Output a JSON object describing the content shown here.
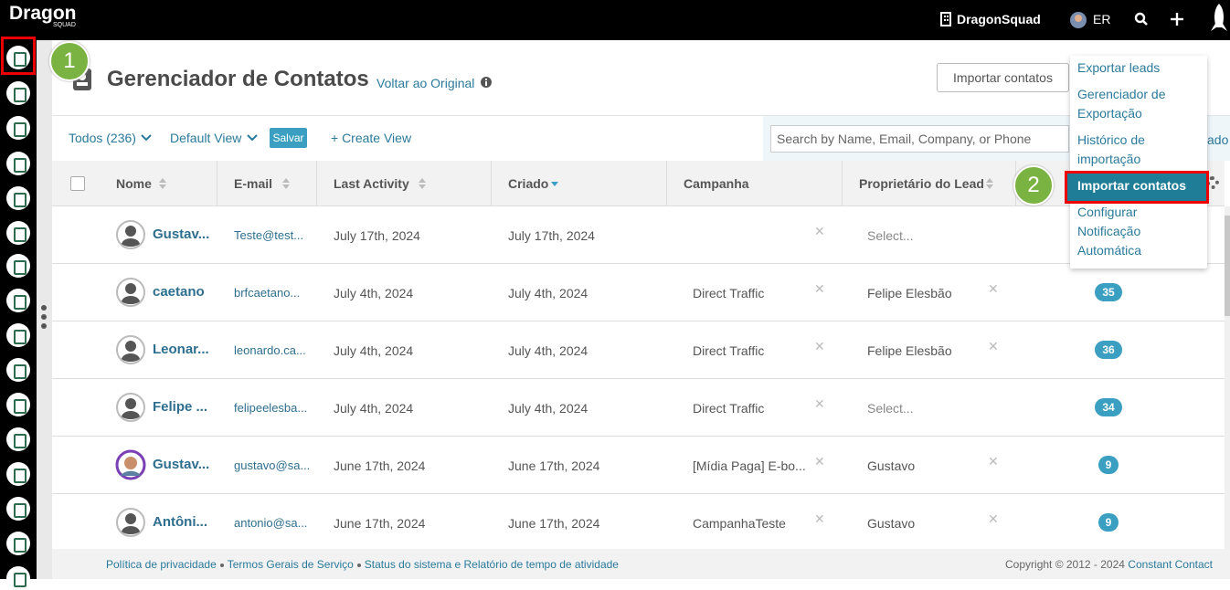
{
  "topbar": {
    "logo": "Dragon",
    "logo_sub": "SQUAD",
    "account": "DragonSquad",
    "user": "ER"
  },
  "steps": [
    "1",
    "2"
  ],
  "header": {
    "title": "Gerenciador de Contatos",
    "back_link": "Voltar ao Original",
    "import_button": "Importar contatos"
  },
  "menu": {
    "items": [
      "Exportar leads",
      "Gerenciador de Exportação",
      "Histórico de importação",
      "Importar contatos",
      "Configurar Notificação Automática"
    ]
  },
  "filters": {
    "all": "Todos (236)",
    "view": "Default View",
    "save": "Salvar",
    "create_view": "+ Create View",
    "search_placeholder": "Search by Name, Email, Company, or Phone",
    "advanced_fragment": "ado"
  },
  "table": {
    "columns": [
      "Nome",
      "E-mail",
      "Last Activity",
      "Criado",
      "Campanha",
      "Proprietário do Lead"
    ],
    "rows": [
      [
        "Gustav...",
        "Teste@test...",
        "July 17th, 2024",
        "July 17th, 2024",
        null,
        "Select...",
        null
      ],
      [
        "caetano",
        "brfcaetano...",
        "July 4th, 2024",
        "July 4th, 2024",
        "Direct Traffic",
        "Felipe Elesbão",
        35
      ],
      [
        "Leonar...",
        "leonardo.ca...",
        "July 4th, 2024",
        "July 4th, 2024",
        "Direct Traffic",
        "Felipe Elesbão",
        36
      ],
      [
        "Felipe ...",
        "felipeelesba...",
        "July 4th, 2024",
        "July 4th, 2024",
        "Direct Traffic",
        "Select...",
        34
      ],
      [
        "Gustav...",
        "gustavo@sa...",
        "June 17th, 2024",
        "June 17th, 2024",
        "[Mídia Paga] E-bo...",
        "Gustavo",
        9
      ],
      [
        "Antôni...",
        "antonio@sa...",
        "June 17th, 2024",
        "June 17th, 2024",
        "CampanhaTeste",
        "Gustavo",
        9
      ]
    ]
  },
  "footer": {
    "links": [
      "Política de privacidade",
      "Termos Gerais de Serviço",
      "Status do sistema e Relatório de tempo de atividade"
    ],
    "copyright": "Copyright © 2012 - 2024",
    "copyright_link": "Constant Contact"
  }
}
